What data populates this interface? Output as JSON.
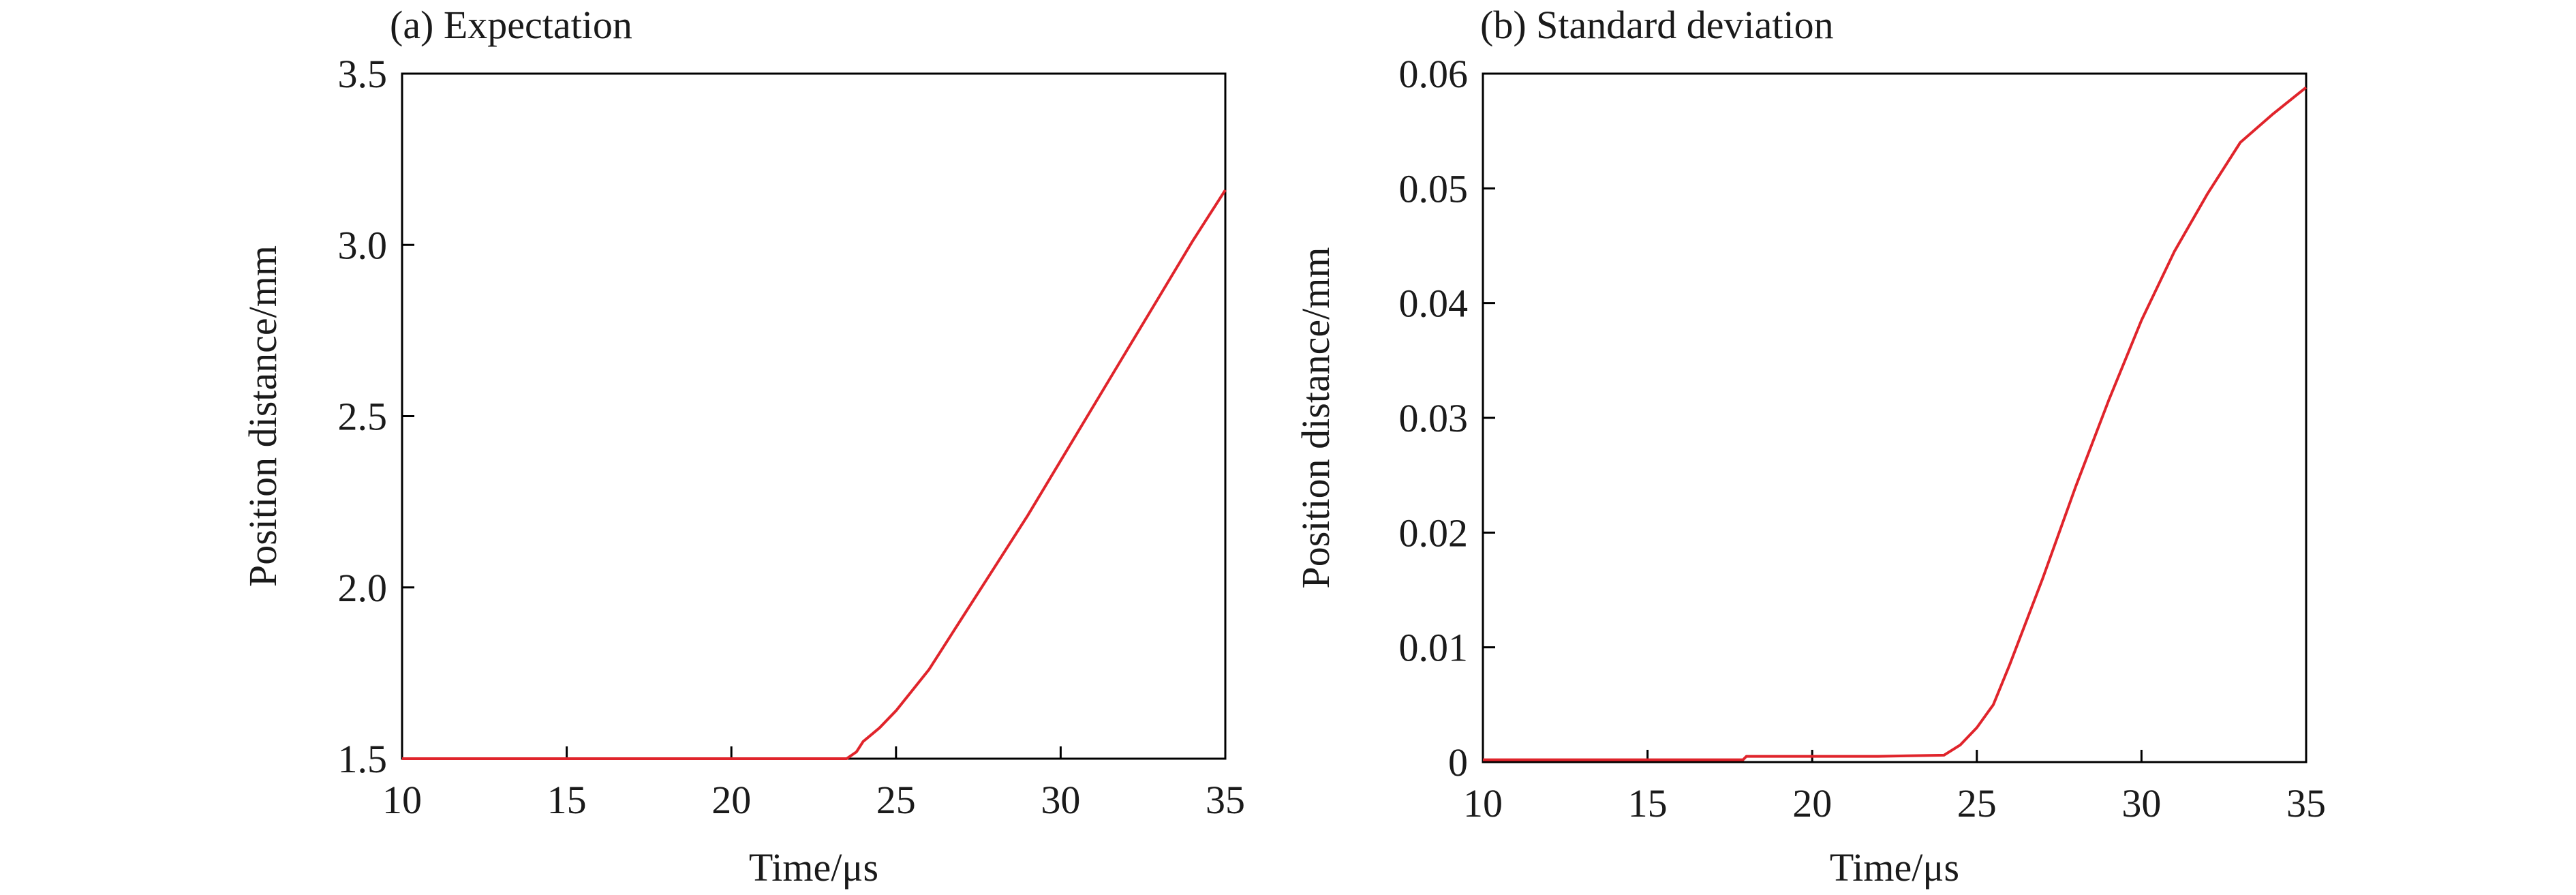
{
  "chart_data": [
    {
      "type": "line",
      "title": "(a) Expectation",
      "xlabel": "Time/μs",
      "ylabel": "Position distance/mm",
      "xlim": [
        10,
        35
      ],
      "ylim": [
        1.5,
        3.5
      ],
      "xticks": [
        10,
        15,
        20,
        25,
        30,
        35
      ],
      "xtick_labels": [
        "10",
        "15",
        "20",
        "25",
        "30",
        "35"
      ],
      "yticks": [
        1.5,
        2.0,
        2.5,
        3.0,
        3.5
      ],
      "ytick_labels": [
        "1.5",
        "2.0",
        "2.5",
        "3.0",
        "3.5"
      ],
      "grid": false,
      "series_color": "#e0242b",
      "series": [
        {
          "x": [
            10,
            15,
            20,
            23.5,
            23.8,
            24.0,
            24.5,
            25.0,
            25.5,
            26.0,
            27.0,
            28.0,
            29.0,
            30.0,
            31.0,
            32.0,
            33.0,
            34.0,
            35.0
          ],
          "y": [
            1.5,
            1.5,
            1.5,
            1.5,
            1.52,
            1.55,
            1.59,
            1.64,
            1.7,
            1.76,
            1.91,
            2.06,
            2.21,
            2.37,
            2.53,
            2.69,
            2.85,
            3.01,
            3.16
          ]
        }
      ]
    },
    {
      "type": "line",
      "title": "(b) Standard deviation",
      "xlabel": "Time/μs",
      "ylabel": "Position distance/mm",
      "xlim": [
        10,
        35
      ],
      "ylim": [
        0,
        0.06
      ],
      "xticks": [
        10,
        15,
        20,
        25,
        30,
        35
      ],
      "xtick_labels": [
        "10",
        "15",
        "20",
        "25",
        "30",
        "35"
      ],
      "yticks": [
        0,
        0.01,
        0.02,
        0.03,
        0.04,
        0.05,
        0.06
      ],
      "ytick_labels": [
        "0",
        "0.01",
        "0.02",
        "0.03",
        "0.04",
        "0.05",
        "0.06"
      ],
      "grid": false,
      "series_color": "#e0242b",
      "series": [
        {
          "x": [
            10,
            15,
            17.9,
            18.0,
            20,
            22,
            24.0,
            24.5,
            25.0,
            25.5,
            26.0,
            27.0,
            28.0,
            29.0,
            30.0,
            31.0,
            32.0,
            33.0,
            34.0,
            35.0
          ],
          "y": [
            0.0002,
            0.0002,
            0.0002,
            0.0005,
            0.0005,
            0.0005,
            0.0006,
            0.0015,
            0.003,
            0.005,
            0.0085,
            0.016,
            0.024,
            0.0315,
            0.0385,
            0.0445,
            0.0495,
            0.054,
            0.0565,
            0.0588
          ]
        }
      ]
    }
  ]
}
